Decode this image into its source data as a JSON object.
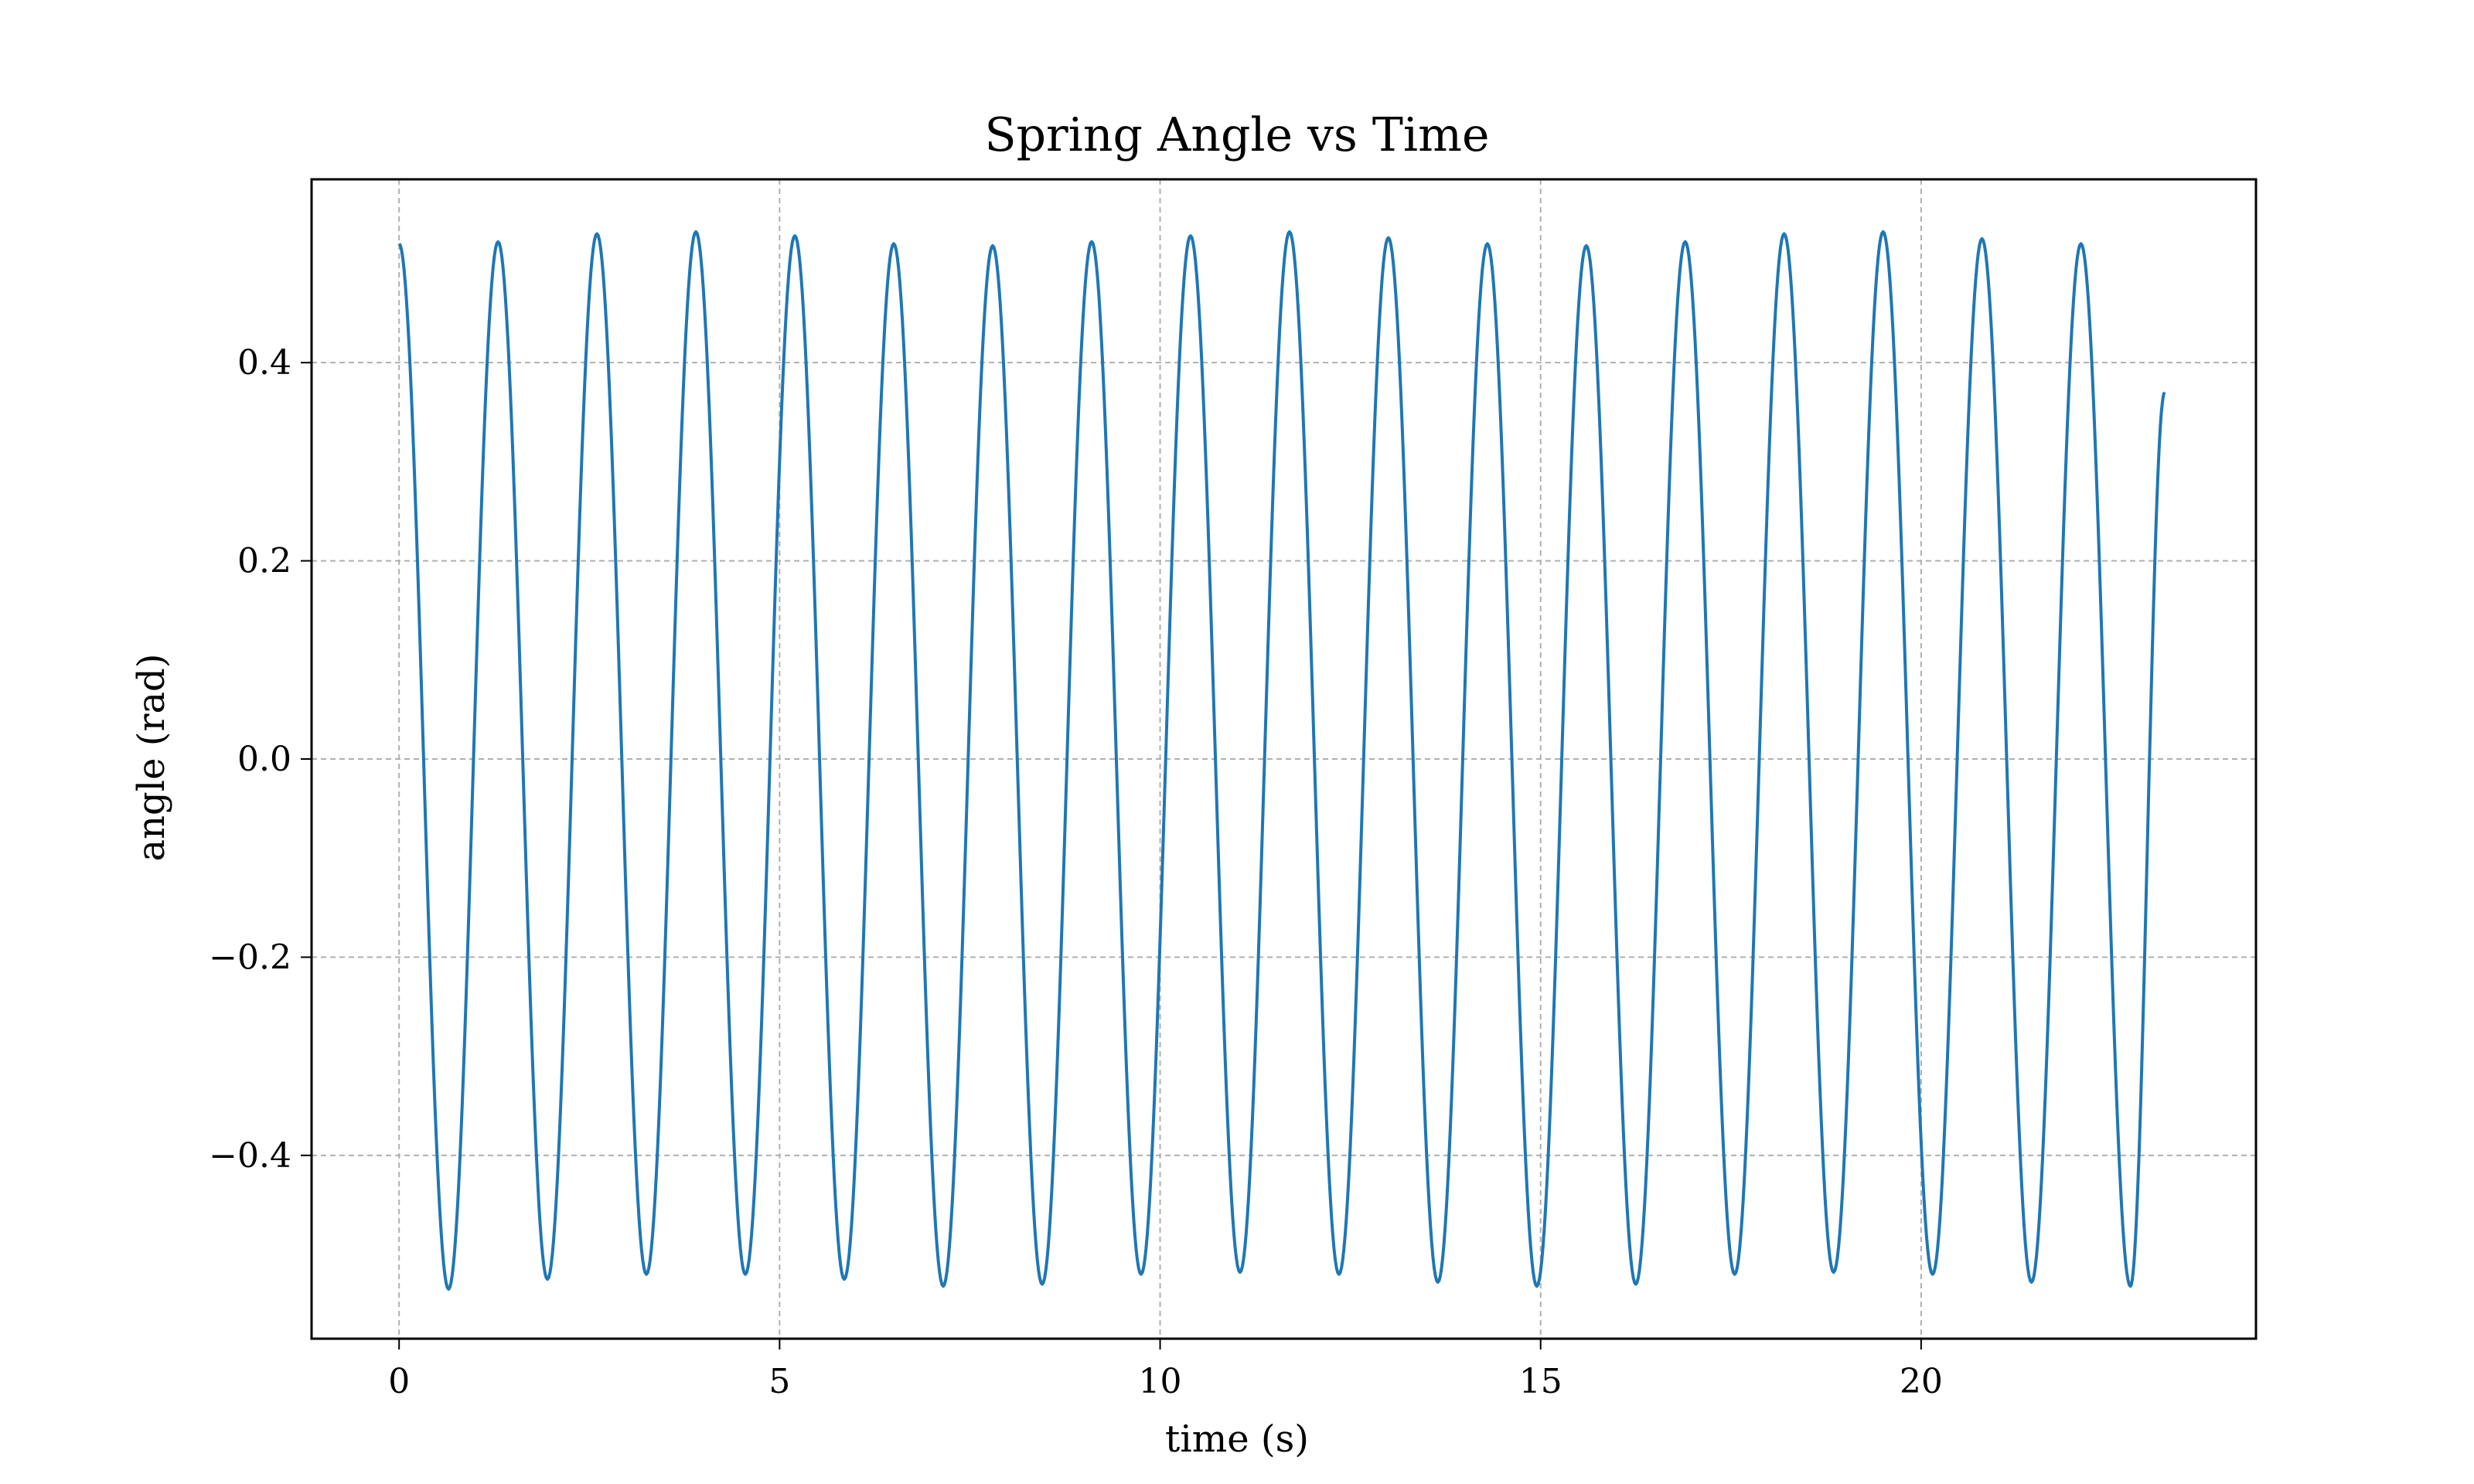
{
  "chart_data": {
    "type": "line",
    "title": "Spring Angle vs Time",
    "xlabel": "time (s)",
    "ylabel": "angle (rad)",
    "xlim": [
      -1.15,
      24.4
    ],
    "ylim": [
      -0.585,
      0.585
    ],
    "x_ticks": [
      {
        "value": 0,
        "label": "0"
      },
      {
        "value": 5,
        "label": "5"
      },
      {
        "value": 10,
        "label": "10"
      },
      {
        "value": 15,
        "label": "15"
      },
      {
        "value": 20,
        "label": "20"
      }
    ],
    "y_ticks": [
      {
        "value": -0.4,
        "label": "−0.4"
      },
      {
        "value": -0.2,
        "label": "−0.2"
      },
      {
        "value": 0.0,
        "label": "0.0"
      },
      {
        "value": 0.2,
        "label": "0.2"
      },
      {
        "value": 0.4,
        "label": "0.4"
      }
    ],
    "grid": true,
    "grid_style": "dashed",
    "series": [
      {
        "color": "#1f77b4",
        "x": [
          0,
          0.65,
          1.3,
          1.95,
          2.6,
          3.25,
          3.9,
          4.55,
          5.2,
          5.85,
          6.5,
          7.15,
          7.8,
          8.45,
          9.1,
          9.75,
          10.4,
          11.05,
          11.7,
          12.35,
          13.0,
          13.65,
          14.3,
          14.95,
          15.6,
          16.25,
          16.9,
          17.55,
          18.2,
          18.85,
          19.5,
          20.15,
          20.8,
          21.45,
          22.1,
          22.75,
          23.2
        ],
        "y": [
          0.52,
          -0.535,
          0.522,
          -0.525,
          0.53,
          -0.52,
          0.532,
          -0.52,
          0.528,
          -0.525,
          0.52,
          -0.532,
          0.518,
          -0.53,
          0.522,
          -0.52,
          0.528,
          -0.518,
          0.532,
          -0.52,
          0.526,
          -0.528,
          0.52,
          -0.532,
          0.518,
          -0.53,
          0.522,
          -0.52,
          0.53,
          -0.518,
          0.532,
          -0.52,
          0.525,
          -0.528,
          0.52,
          -0.532,
          0.37
        ]
      }
    ]
  }
}
